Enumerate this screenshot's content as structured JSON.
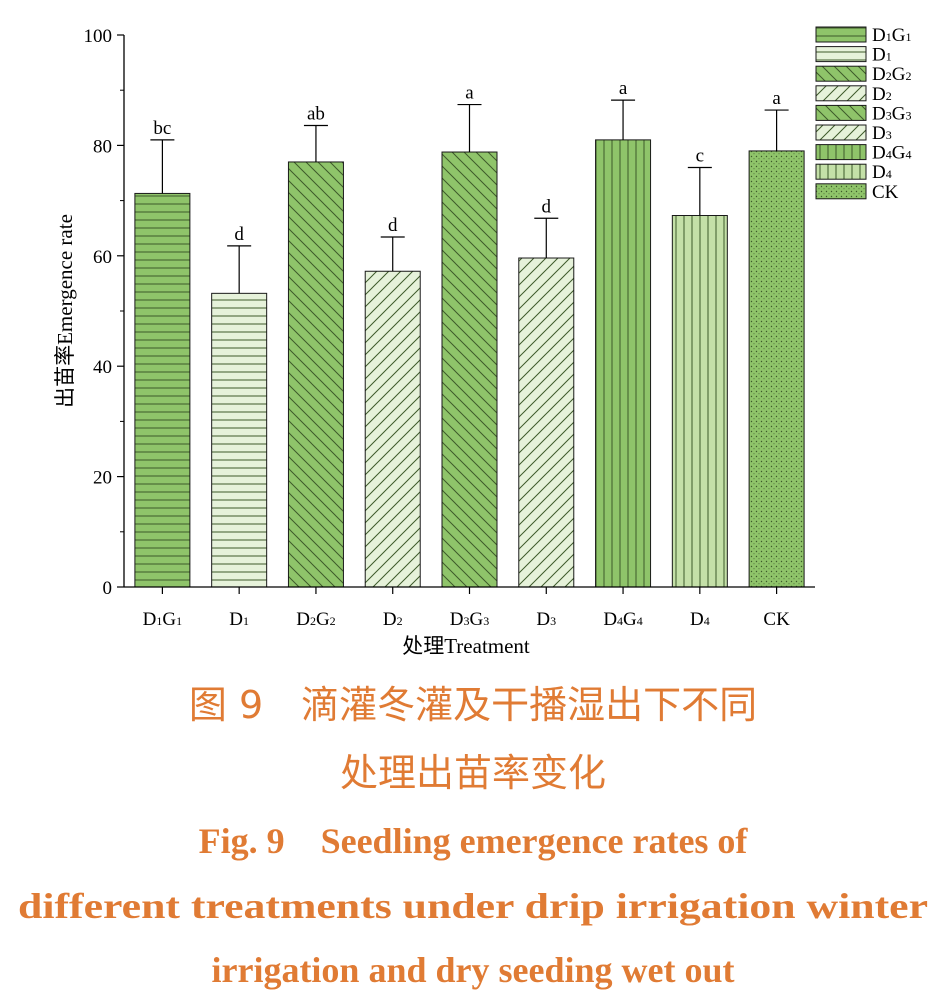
{
  "chart_data": {
    "type": "bar",
    "categories": [
      "D1G1",
      "D1",
      "D2G2",
      "D2",
      "D3G3",
      "D3",
      "D4G4",
      "D4",
      "CK"
    ],
    "category_labels": [
      {
        "main": "D",
        "sub1": "1",
        "mid": "G",
        "sub2": "1"
      },
      {
        "main": "D",
        "sub1": "1",
        "mid": "",
        "sub2": ""
      },
      {
        "main": "D",
        "sub1": "2",
        "mid": "G",
        "sub2": "2"
      },
      {
        "main": "D",
        "sub1": "2",
        "mid": "",
        "sub2": ""
      },
      {
        "main": "D",
        "sub1": "3",
        "mid": "G",
        "sub2": "3"
      },
      {
        "main": "D",
        "sub1": "3",
        "mid": "",
        "sub2": ""
      },
      {
        "main": "D",
        "sub1": "4",
        "mid": "G",
        "sub2": "4"
      },
      {
        "main": "D",
        "sub1": "4",
        "mid": "",
        "sub2": ""
      },
      {
        "main": "CK",
        "sub1": "",
        "mid": "",
        "sub2": ""
      }
    ],
    "values": [
      71.3,
      53.2,
      77.0,
      57.2,
      78.8,
      59.6,
      81.0,
      67.3,
      79.0
    ],
    "error_upper": [
      81.0,
      61.8,
      83.6,
      63.4,
      87.4,
      66.8,
      88.2,
      76.0,
      86.4
    ],
    "significance_letters": [
      "bc",
      "d",
      "ab",
      "d",
      "a",
      "d",
      "a",
      "c",
      "a"
    ],
    "patterns": [
      "hlines",
      "hlines",
      "diag-down",
      "diag-up",
      "diag-down",
      "diag-up",
      "vlines",
      "vlines",
      "dots"
    ],
    "fills": [
      "#8fc46a",
      "#e6f2da",
      "#8fc46a",
      "#e6f2da",
      "#8fc46a",
      "#e6f2da",
      "#8fc46a",
      "#c4e0a8",
      "#8fc46a"
    ],
    "ylim": [
      0,
      100
    ],
    "yticks": [
      0,
      20,
      40,
      60,
      80,
      100
    ],
    "ylabel": "出苗率Emergence rate",
    "xlabel": "处理Treatment",
    "grid": false,
    "legend_position": "top-right"
  },
  "caption": {
    "cn_line1": "图 9　滴灌冬灌及干播湿出下不同",
    "cn_line2": "处理出苗率变化",
    "en_line1": "Fig. 9　Seedling emergence rates of",
    "en_line2": "different treatments under drip irrigation winter",
    "en_line3": "irrigation and dry seeding wet out"
  },
  "colors": {
    "caption": "#e07b34",
    "bar_dark": "#8fc46a",
    "bar_light": "#e6f2da",
    "axis": "#000000"
  }
}
